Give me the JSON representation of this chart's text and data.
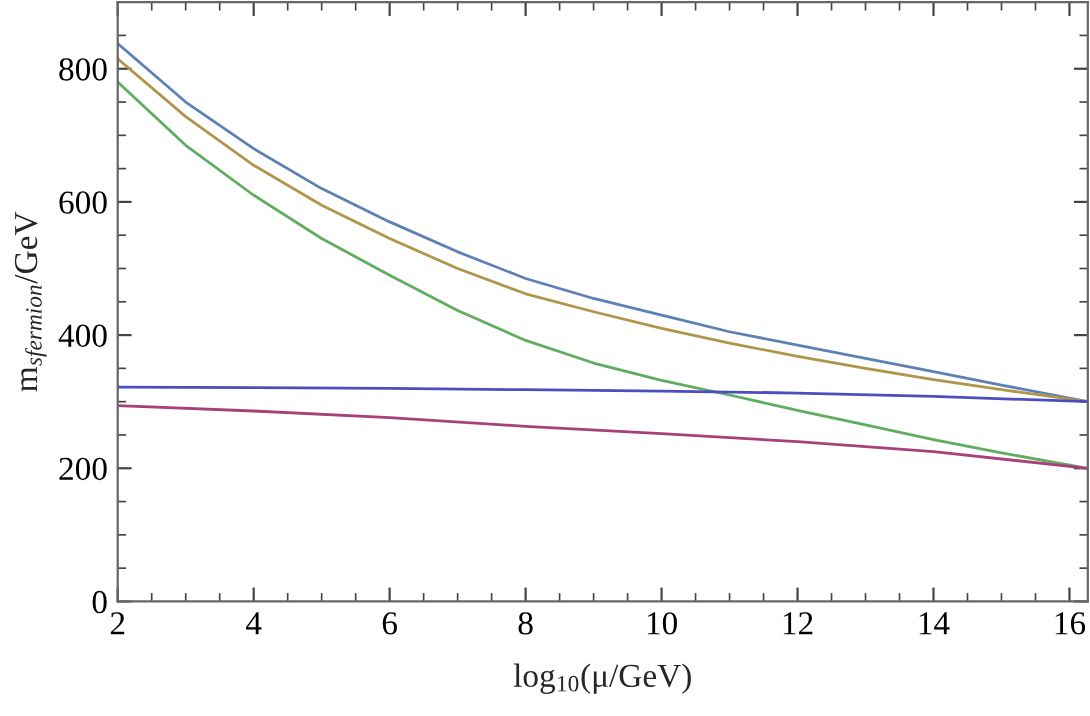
{
  "chart_data": {
    "type": "line",
    "xlabel": "log$_{10}$(μ/GeV)",
    "ylabel": "m$_{sfermion}$/GeV",
    "xlim": [
      2,
      16.27
    ],
    "ylim": [
      0,
      900
    ],
    "xticks": [
      2,
      4,
      6,
      8,
      10,
      12,
      14,
      16
    ],
    "yticks": [
      0,
      200,
      400,
      600,
      800
    ],
    "grid": false,
    "legend": false,
    "series": [
      {
        "color": "#5e81b5",
        "x": [
          2,
          3,
          4,
          5,
          6,
          7,
          8,
          9,
          10,
          11,
          12,
          13,
          14,
          15,
          16.27
        ],
        "values": [
          838,
          750,
          680,
          620,
          570,
          525,
          485,
          455,
          430,
          405,
          385,
          365,
          345,
          325,
          300
        ]
      },
      {
        "color": "#b0964a",
        "x": [
          2,
          3,
          4,
          5,
          6,
          7,
          8,
          9,
          10,
          11,
          12,
          13,
          14,
          15,
          16.27
        ],
        "values": [
          815,
          728,
          655,
          595,
          545,
          500,
          462,
          435,
          410,
          388,
          368,
          350,
          333,
          318,
          300
        ]
      },
      {
        "color": "#60ad60",
        "x": [
          2,
          3,
          4,
          5,
          6,
          7,
          8,
          9,
          10,
          11,
          12,
          13,
          14,
          15,
          16.27
        ],
        "values": [
          780,
          685,
          610,
          545,
          490,
          437,
          392,
          358,
          332,
          310,
          287,
          265,
          243,
          223,
          200
        ]
      },
      {
        "color": "#4d4dc0",
        "x": [
          2,
          4,
          6,
          8,
          10,
          12,
          14,
          16.27
        ],
        "values": [
          322,
          321,
          320,
          318,
          316,
          313,
          308,
          300
        ]
      },
      {
        "color": "#a8407a",
        "x": [
          2,
          4,
          6,
          8,
          10,
          12,
          14,
          16.27
        ],
        "values": [
          294,
          286,
          276,
          263,
          252,
          240,
          225,
          200
        ]
      }
    ]
  }
}
